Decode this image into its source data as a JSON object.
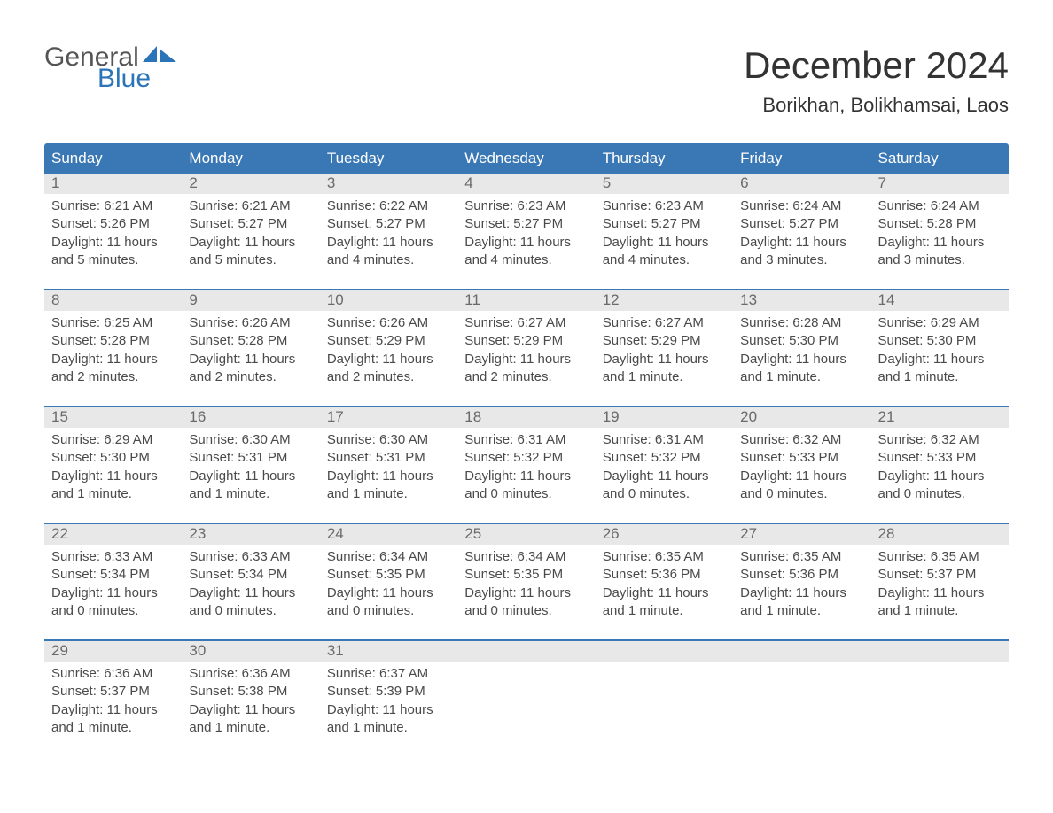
{
  "brand": {
    "word1": "General",
    "word2": "Blue",
    "word1_color": "#555555",
    "word2_color": "#2b74b8",
    "sail_color": "#2b74b8"
  },
  "title": "December 2024",
  "subtitle": "Borikhan, Bolikhamsai, Laos",
  "colors": {
    "header_bg": "#3a78b5",
    "header_text": "#ffffff",
    "daynum_bg": "#e8e8e8",
    "daynum_text": "#6a6a6a",
    "content_text": "#4a4a4a",
    "border_top": "#3a78b5",
    "background": "#ffffff"
  },
  "font_sizes": {
    "title": 42,
    "subtitle": 22,
    "header": 17,
    "daynum": 17,
    "content": 15
  },
  "weekdays": [
    "Sunday",
    "Monday",
    "Tuesday",
    "Wednesday",
    "Thursday",
    "Friday",
    "Saturday"
  ],
  "weeks": [
    {
      "days": [
        {
          "num": "1",
          "sunrise": "Sunrise: 6:21 AM",
          "sunset": "Sunset: 5:26 PM",
          "daylight1": "Daylight: 11 hours",
          "daylight2": "and 5 minutes."
        },
        {
          "num": "2",
          "sunrise": "Sunrise: 6:21 AM",
          "sunset": "Sunset: 5:27 PM",
          "daylight1": "Daylight: 11 hours",
          "daylight2": "and 5 minutes."
        },
        {
          "num": "3",
          "sunrise": "Sunrise: 6:22 AM",
          "sunset": "Sunset: 5:27 PM",
          "daylight1": "Daylight: 11 hours",
          "daylight2": "and 4 minutes."
        },
        {
          "num": "4",
          "sunrise": "Sunrise: 6:23 AM",
          "sunset": "Sunset: 5:27 PM",
          "daylight1": "Daylight: 11 hours",
          "daylight2": "and 4 minutes."
        },
        {
          "num": "5",
          "sunrise": "Sunrise: 6:23 AM",
          "sunset": "Sunset: 5:27 PM",
          "daylight1": "Daylight: 11 hours",
          "daylight2": "and 4 minutes."
        },
        {
          "num": "6",
          "sunrise": "Sunrise: 6:24 AM",
          "sunset": "Sunset: 5:27 PM",
          "daylight1": "Daylight: 11 hours",
          "daylight2": "and 3 minutes."
        },
        {
          "num": "7",
          "sunrise": "Sunrise: 6:24 AM",
          "sunset": "Sunset: 5:28 PM",
          "daylight1": "Daylight: 11 hours",
          "daylight2": "and 3 minutes."
        }
      ]
    },
    {
      "days": [
        {
          "num": "8",
          "sunrise": "Sunrise: 6:25 AM",
          "sunset": "Sunset: 5:28 PM",
          "daylight1": "Daylight: 11 hours",
          "daylight2": "and 2 minutes."
        },
        {
          "num": "9",
          "sunrise": "Sunrise: 6:26 AM",
          "sunset": "Sunset: 5:28 PM",
          "daylight1": "Daylight: 11 hours",
          "daylight2": "and 2 minutes."
        },
        {
          "num": "10",
          "sunrise": "Sunrise: 6:26 AM",
          "sunset": "Sunset: 5:29 PM",
          "daylight1": "Daylight: 11 hours",
          "daylight2": "and 2 minutes."
        },
        {
          "num": "11",
          "sunrise": "Sunrise: 6:27 AM",
          "sunset": "Sunset: 5:29 PM",
          "daylight1": "Daylight: 11 hours",
          "daylight2": "and 2 minutes."
        },
        {
          "num": "12",
          "sunrise": "Sunrise: 6:27 AM",
          "sunset": "Sunset: 5:29 PM",
          "daylight1": "Daylight: 11 hours",
          "daylight2": "and 1 minute."
        },
        {
          "num": "13",
          "sunrise": "Sunrise: 6:28 AM",
          "sunset": "Sunset: 5:30 PM",
          "daylight1": "Daylight: 11 hours",
          "daylight2": "and 1 minute."
        },
        {
          "num": "14",
          "sunrise": "Sunrise: 6:29 AM",
          "sunset": "Sunset: 5:30 PM",
          "daylight1": "Daylight: 11 hours",
          "daylight2": "and 1 minute."
        }
      ]
    },
    {
      "days": [
        {
          "num": "15",
          "sunrise": "Sunrise: 6:29 AM",
          "sunset": "Sunset: 5:30 PM",
          "daylight1": "Daylight: 11 hours",
          "daylight2": "and 1 minute."
        },
        {
          "num": "16",
          "sunrise": "Sunrise: 6:30 AM",
          "sunset": "Sunset: 5:31 PM",
          "daylight1": "Daylight: 11 hours",
          "daylight2": "and 1 minute."
        },
        {
          "num": "17",
          "sunrise": "Sunrise: 6:30 AM",
          "sunset": "Sunset: 5:31 PM",
          "daylight1": "Daylight: 11 hours",
          "daylight2": "and 1 minute."
        },
        {
          "num": "18",
          "sunrise": "Sunrise: 6:31 AM",
          "sunset": "Sunset: 5:32 PM",
          "daylight1": "Daylight: 11 hours",
          "daylight2": "and 0 minutes."
        },
        {
          "num": "19",
          "sunrise": "Sunrise: 6:31 AM",
          "sunset": "Sunset: 5:32 PM",
          "daylight1": "Daylight: 11 hours",
          "daylight2": "and 0 minutes."
        },
        {
          "num": "20",
          "sunrise": "Sunrise: 6:32 AM",
          "sunset": "Sunset: 5:33 PM",
          "daylight1": "Daylight: 11 hours",
          "daylight2": "and 0 minutes."
        },
        {
          "num": "21",
          "sunrise": "Sunrise: 6:32 AM",
          "sunset": "Sunset: 5:33 PM",
          "daylight1": "Daylight: 11 hours",
          "daylight2": "and 0 minutes."
        }
      ]
    },
    {
      "days": [
        {
          "num": "22",
          "sunrise": "Sunrise: 6:33 AM",
          "sunset": "Sunset: 5:34 PM",
          "daylight1": "Daylight: 11 hours",
          "daylight2": "and 0 minutes."
        },
        {
          "num": "23",
          "sunrise": "Sunrise: 6:33 AM",
          "sunset": "Sunset: 5:34 PM",
          "daylight1": "Daylight: 11 hours",
          "daylight2": "and 0 minutes."
        },
        {
          "num": "24",
          "sunrise": "Sunrise: 6:34 AM",
          "sunset": "Sunset: 5:35 PM",
          "daylight1": "Daylight: 11 hours",
          "daylight2": "and 0 minutes."
        },
        {
          "num": "25",
          "sunrise": "Sunrise: 6:34 AM",
          "sunset": "Sunset: 5:35 PM",
          "daylight1": "Daylight: 11 hours",
          "daylight2": "and 0 minutes."
        },
        {
          "num": "26",
          "sunrise": "Sunrise: 6:35 AM",
          "sunset": "Sunset: 5:36 PM",
          "daylight1": "Daylight: 11 hours",
          "daylight2": "and 1 minute."
        },
        {
          "num": "27",
          "sunrise": "Sunrise: 6:35 AM",
          "sunset": "Sunset: 5:36 PM",
          "daylight1": "Daylight: 11 hours",
          "daylight2": "and 1 minute."
        },
        {
          "num": "28",
          "sunrise": "Sunrise: 6:35 AM",
          "sunset": "Sunset: 5:37 PM",
          "daylight1": "Daylight: 11 hours",
          "daylight2": "and 1 minute."
        }
      ]
    },
    {
      "days": [
        {
          "num": "29",
          "sunrise": "Sunrise: 6:36 AM",
          "sunset": "Sunset: 5:37 PM",
          "daylight1": "Daylight: 11 hours",
          "daylight2": "and 1 minute."
        },
        {
          "num": "30",
          "sunrise": "Sunrise: 6:36 AM",
          "sunset": "Sunset: 5:38 PM",
          "daylight1": "Daylight: 11 hours",
          "daylight2": "and 1 minute."
        },
        {
          "num": "31",
          "sunrise": "Sunrise: 6:37 AM",
          "sunset": "Sunset: 5:39 PM",
          "daylight1": "Daylight: 11 hours",
          "daylight2": "and 1 minute."
        },
        {
          "num": "",
          "sunrise": "",
          "sunset": "",
          "daylight1": "",
          "daylight2": ""
        },
        {
          "num": "",
          "sunrise": "",
          "sunset": "",
          "daylight1": "",
          "daylight2": ""
        },
        {
          "num": "",
          "sunrise": "",
          "sunset": "",
          "daylight1": "",
          "daylight2": ""
        },
        {
          "num": "",
          "sunrise": "",
          "sunset": "",
          "daylight1": "",
          "daylight2": ""
        }
      ]
    }
  ]
}
